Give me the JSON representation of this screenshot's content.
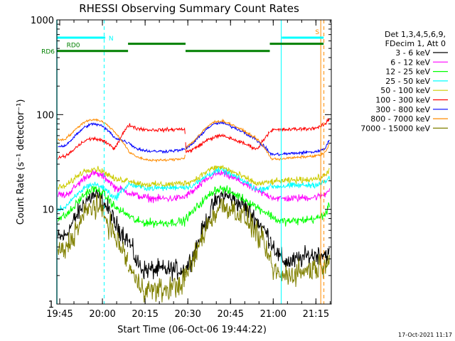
{
  "chart_data": {
    "type": "line",
    "title": "RHESSI Observing Summary Count Rates",
    "xlabel": "Start Time (06-Oct-06 19:44:22)",
    "ylabel": "Count Rate (s⁻¹ detector⁻¹)",
    "x_tick_labels": [
      "19:45",
      "20:00",
      "20:15",
      "20:30",
      "20:45",
      "21:00",
      "21:15"
    ],
    "x_range_minutes": [
      -0.4,
      96.0
    ],
    "y_scale": "log",
    "ylim": [
      1,
      1000
    ],
    "y_tick_labels": [
      "1",
      "10",
      "100",
      "1000"
    ],
    "grid": false,
    "legend": {
      "placement": "right",
      "header1": "Det 1,3,4,5,6,9,",
      "header2": "FDecim 1, Att 0"
    },
    "annotations": {
      "rd6_label": "RD6",
      "rd0_label": "RD0",
      "n_label": "N",
      "s_label": "S",
      "rd6_color": "#008000",
      "n_color": "#00ffff",
      "s_color": "#ff8c00",
      "rd6_segments": [
        [
          -0.4,
          24.6
        ],
        [
          24.6,
          44.8
        ],
        [
          44.8,
          74.4
        ],
        [
          74.4,
          93.3
        ]
      ],
      "rd6_levels": [
        470,
        560,
        470,
        560
      ],
      "n_segments": [
        [
          -0.4,
          16.6
        ],
        [
          78.6,
          93.3
        ]
      ],
      "n_level": 650,
      "s_marks": [
        92.6,
        94.1
      ],
      "vertical_markers_cyan": [
        -0.4,
        16.2,
        78.4
      ],
      "vertical_markers_orange": [
        92.3,
        93.4
      ]
    },
    "gaps_minutes": [
      24.6,
      44.8,
      74.4
    ],
    "series": [
      {
        "name": "3 - 6 keV",
        "color": "#000000",
        "noise": 0.16,
        "values": [
          5.0,
          5.2,
          7.0,
          9.5,
          12.5,
          14.0,
          13.0,
          10.0,
          7.0,
          4.5,
          2.8,
          2.3,
          2.3,
          2.3,
          2.3,
          2.3,
          2.3,
          2.3,
          2.4,
          3.2,
          5.0,
          8.0,
          11.5,
          14.0,
          13.5,
          11.0,
          7.5,
          4.5,
          3.2,
          2.8,
          2.8,
          3.0,
          3.2,
          3.3,
          3.4,
          3.4,
          3.2
        ]
      },
      {
        "name": "6 - 12 keV",
        "color": "#ff00ff",
        "noise": 0.06,
        "values": [
          14.5,
          14.0,
          16.0,
          19.0,
          22.5,
          24.0,
          23.0,
          20.5,
          17.0,
          15.0,
          14.0,
          13.5,
          13.0,
          13.0,
          13.0,
          13.0,
          13.2,
          13.5,
          14.0,
          15.5,
          18.0,
          21.0,
          23.5,
          24.0,
          22.5,
          19.0,
          15.5,
          13.5,
          13.0,
          13.0,
          13.0,
          13.2,
          13.3,
          13.4,
          13.8,
          14.5,
          17.0
        ]
      },
      {
        "name": "12 - 25 keV",
        "color": "#00ff00",
        "noise": 0.07,
        "values": [
          8.0,
          8.5,
          10.0,
          12.5,
          15.0,
          16.5,
          15.5,
          13.0,
          10.5,
          8.5,
          7.5,
          7.3,
          7.2,
          7.2,
          7.2,
          7.3,
          7.4,
          7.5,
          8.0,
          9.5,
          11.5,
          13.5,
          16.0,
          16.5,
          15.5,
          13.0,
          10.5,
          8.5,
          7.5,
          7.5,
          7.5,
          7.6,
          7.8,
          7.9,
          8.2,
          9.0,
          11.0
        ]
      },
      {
        "name": "25 - 50 keV",
        "color": "#00ffff",
        "noise": 0.05,
        "values": [
          10.0,
          10.5,
          12.5,
          15.0,
          17.5,
          18.5,
          17.5,
          15.5,
          13.0,
          18.5,
          17.5,
          17.0,
          16.8,
          16.8,
          16.8,
          17.0,
          17.2,
          17.2,
          17.0,
          18.0,
          20.0,
          23.0,
          25.0,
          26.0,
          24.0,
          20.0,
          16.0,
          17.5,
          17.5,
          17.6,
          17.8,
          17.9,
          18.0,
          18.2,
          18.6,
          19.5,
          22.0
        ]
      },
      {
        "name": "50 - 100 keV",
        "color": "#cccc00",
        "noise": 0.05,
        "values": [
          17.0,
          17.5,
          20.0,
          23.5,
          26.0,
          27.0,
          26.0,
          23.5,
          20.5,
          20.5,
          19.0,
          18.5,
          18.3,
          18.3,
          18.3,
          18.5,
          18.8,
          19.0,
          19.0,
          20.0,
          22.5,
          25.5,
          27.5,
          28.0,
          26.0,
          22.0,
          18.5,
          19.5,
          19.8,
          20.0,
          20.3,
          20.5,
          20.7,
          21.0,
          21.5,
          23.0,
          27.0
        ]
      },
      {
        "name": "100 - 300 keV",
        "color": "#ff0000",
        "noise": 0.03,
        "values": [
          35.0,
          36.0,
          41.0,
          48.0,
          54.0,
          56.0,
          54.0,
          49.0,
          44.0,
          78.0,
          72.0,
          70.0,
          69.0,
          69.0,
          69.0,
          69.5,
          70.0,
          71.0,
          40.0,
          43.0,
          48.0,
          54.0,
          58.0,
          60.0,
          57.0,
          50.0,
          43.0,
          69.0,
          69.0,
          69.5,
          70.0,
          70.5,
          71.0,
          72.0,
          74.0,
          80.0,
          92.0
        ]
      },
      {
        "name": "300 - 800 keV",
        "color": "#0000ff",
        "noise": 0.025,
        "values": [
          46.0,
          47.0,
          55.0,
          66.0,
          76.0,
          80.0,
          77.0,
          68.0,
          57.0,
          50.0,
          44.0,
          42.0,
          41.0,
          41.0,
          41.0,
          41.5,
          42.0,
          43.0,
          44.0,
          50.0,
          60.0,
          72.0,
          80.0,
          82.0,
          77.0,
          66.0,
          53.0,
          38.0,
          38.0,
          38.5,
          39.0,
          39.5,
          40.0,
          40.5,
          41.5,
          45.0,
          55.0
        ]
      },
      {
        "name": "800 - 7000 keV",
        "color": "#ff8c00",
        "noise": 0.02,
        "values": [
          54.0,
          55.0,
          64.0,
          76.0,
          86.0,
          89.0,
          86.0,
          77.0,
          65.0,
          40.0,
          36.0,
          34.0,
          33.0,
          33.0,
          33.0,
          33.5,
          34.0,
          35.0,
          45.0,
          52.0,
          62.0,
          75.0,
          84.0,
          86.0,
          81.0,
          68.0,
          55.0,
          34.0,
          34.0,
          34.5,
          35.0,
          35.5,
          36.0,
          36.5,
          37.5,
          40.0,
          50.0
        ]
      },
      {
        "name": "7000 - 15000 keV",
        "color": "#808000",
        "noise": 0.2,
        "values": [
          3.5,
          3.7,
          5.0,
          7.0,
          9.5,
          11.0,
          10.0,
          7.5,
          5.0,
          2.5,
          1.7,
          1.5,
          1.4,
          1.4,
          1.4,
          1.5,
          1.6,
          1.8,
          2.0,
          2.8,
          4.5,
          6.8,
          9.0,
          11.0,
          10.5,
          8.5,
          5.5,
          2.5,
          2.0,
          2.0,
          2.1,
          2.2,
          2.3,
          2.4,
          2.5,
          2.8,
          3.2
        ]
      }
    ],
    "x": [
      0,
      2.5,
      5,
      7.5,
      10,
      12.5,
      15,
      17.5,
      20,
      25,
      27.5,
      30,
      32.5,
      35,
      37.5,
      40,
      42.5,
      44.5,
      45,
      47.5,
      50,
      52.5,
      55,
      57.5,
      60,
      65,
      70,
      75,
      77.5,
      80,
      82.5,
      85,
      87.5,
      90,
      92,
      94,
      95.5
    ]
  },
  "footer": {
    "date_stamp": "17-Oct-2021 11:17"
  }
}
